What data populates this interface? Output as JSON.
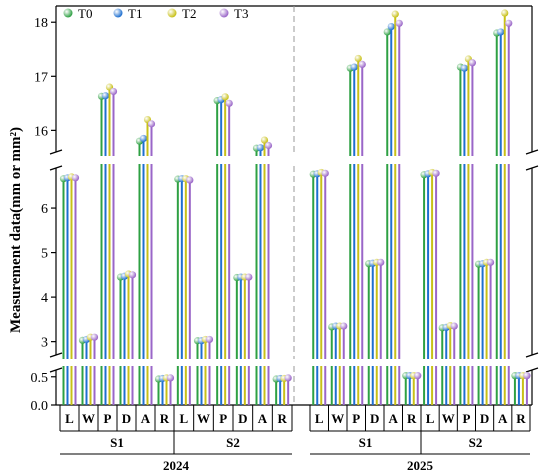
{
  "chart_data": {
    "type": "bar",
    "ylabel": "Measurement data(mm or mm²)",
    "legend_position": "top-left",
    "y_axis_break": true,
    "yticks_upper": [
      "16",
      "17",
      "18"
    ],
    "yticks_middle": [
      "3",
      "4",
      "5",
      "6"
    ],
    "yticks_lower": [
      "0.0",
      "0.5"
    ],
    "series": [
      {
        "name": "T0",
        "color": "#2ea043"
      },
      {
        "name": "T1",
        "color": "#1e6fd0"
      },
      {
        "name": "T2",
        "color": "#c8c018"
      },
      {
        "name": "T3",
        "color": "#9a66c8"
      }
    ],
    "categories": [
      "L",
      "W",
      "P",
      "D",
      "A",
      "R"
    ],
    "groups": [
      {
        "year": "2024",
        "stages": [
          {
            "name": "S1",
            "values": [
              [
                6.66,
                6.68,
                6.7,
                6.68
              ],
              [
                3.03,
                3.05,
                3.1,
                3.1
              ],
              [
                16.63,
                16.64,
                16.8,
                16.72
              ],
              [
                4.45,
                4.47,
                4.52,
                4.5
              ],
              [
                15.8,
                15.85,
                16.2,
                16.12
              ],
              [
                0.46,
                0.47,
                0.48,
                0.48
              ]
            ]
          },
          {
            "name": "S2",
            "values": [
              [
                6.65,
                6.66,
                6.66,
                6.63
              ],
              [
                3.02,
                3.02,
                3.05,
                3.05
              ],
              [
                16.55,
                16.57,
                16.62,
                16.5
              ],
              [
                4.44,
                4.45,
                4.45,
                4.45
              ],
              [
                15.67,
                15.68,
                15.82,
                15.72
              ],
              [
                0.46,
                0.47,
                0.47,
                0.48
              ]
            ]
          }
        ]
      },
      {
        "year": "2025",
        "stages": [
          {
            "name": "S1",
            "values": [
              [
                6.76,
                6.77,
                6.8,
                6.78
              ],
              [
                3.33,
                3.35,
                3.35,
                3.35
              ],
              [
                17.15,
                17.17,
                17.33,
                17.22
              ],
              [
                4.75,
                4.76,
                4.78,
                4.78
              ],
              [
                17.82,
                17.92,
                18.15,
                17.98
              ],
              [
                0.52,
                0.52,
                0.52,
                0.52
              ]
            ]
          },
          {
            "name": "S2",
            "values": [
              [
                6.75,
                6.77,
                6.8,
                6.78
              ],
              [
                3.31,
                3.32,
                3.36,
                3.35
              ],
              [
                17.17,
                17.15,
                17.32,
                17.25
              ],
              [
                4.74,
                4.75,
                4.78,
                4.78
              ],
              [
                17.8,
                17.82,
                18.17,
                17.98
              ],
              [
                0.52,
                0.52,
                0.52,
                0.52
              ]
            ]
          }
        ]
      }
    ]
  }
}
